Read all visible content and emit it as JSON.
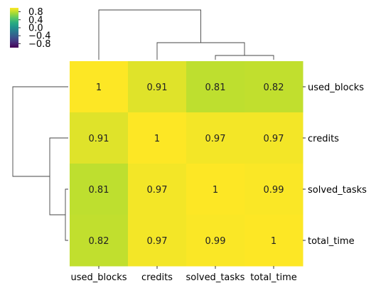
{
  "chart_data": {
    "type": "heatmap",
    "title": "",
    "xlabel": "",
    "ylabel": "",
    "row_labels": [
      "used_blocks",
      "credits",
      "solved_tasks",
      "total_time"
    ],
    "column_labels": [
      "used_blocks",
      "credits",
      "solved_tasks",
      "total_time"
    ],
    "values": [
      [
        1,
        0.91,
        0.81,
        0.82
      ],
      [
        0.91,
        1,
        0.97,
        0.97
      ],
      [
        0.81,
        0.97,
        1,
        0.99
      ],
      [
        0.82,
        0.97,
        0.99,
        1
      ]
    ],
    "cell_labels": [
      [
        "1",
        "0.91",
        "0.81",
        "0.82"
      ],
      [
        "0.91",
        "1",
        "0.97",
        "0.97"
      ],
      [
        "0.81",
        "0.97",
        "1",
        "0.99"
      ],
      [
        "0.82",
        "0.97",
        "0.99",
        "1"
      ]
    ],
    "colormap": "viridis",
    "value_range": [
      -1,
      1
    ],
    "colorbar": {
      "ticks": [
        0.8,
        0.4,
        0.0,
        -0.4,
        -0.8
      ],
      "tick_labels": [
        "0.8",
        "0.4",
        "0.0",
        "−0.4",
        "−0.8"
      ],
      "placement": "top-left"
    },
    "dendrograms": {
      "rows": {
        "side": "left",
        "merges": [
          {
            "members": [
              "solved_tasks",
              "total_time"
            ],
            "distance": 0.01
          },
          {
            "members": [
              "credits",
              "solved_tasks",
              "total_time"
            ],
            "distance": 0.04
          },
          {
            "members": [
              "used_blocks",
              "credits",
              "solved_tasks",
              "total_time"
            ],
            "distance": 0.25
          }
        ]
      },
      "columns": {
        "side": "top",
        "merges": [
          {
            "members": [
              "solved_tasks",
              "total_time"
            ],
            "distance": 0.01
          },
          {
            "members": [
              "credits",
              "solved_tasks",
              "total_time"
            ],
            "distance": 0.04
          },
          {
            "members": [
              "used_blocks",
              "credits",
              "solved_tasks",
              "total_time"
            ],
            "distance": 0.25
          }
        ]
      }
    },
    "colors": {
      "text": "#222222",
      "dendrogram_line": "#444444"
    }
  }
}
